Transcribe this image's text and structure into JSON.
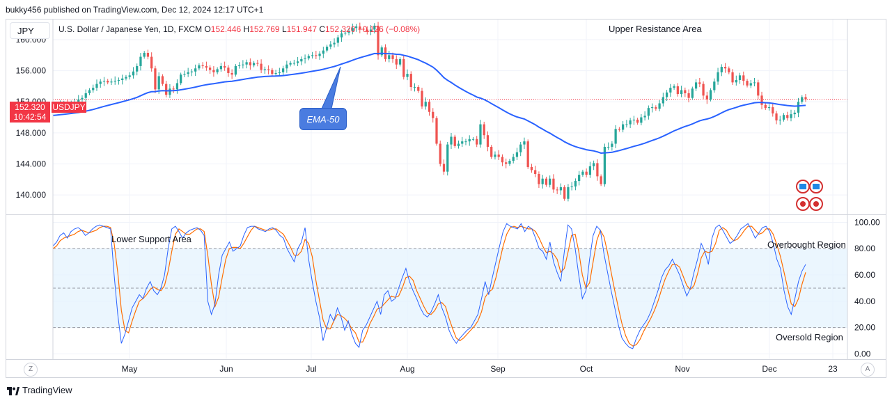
{
  "header": {
    "publish_text": "bukky456 published on TradingView.com, Dec 12, 2024 12:17 UTC+1"
  },
  "currency_button": "JPY",
  "legend": {
    "symbol_desc": "U.S. Dollar / Japanese Yen, 1D, FXCM",
    "o_label": "O",
    "o_value": "152.446",
    "h_label": "H",
    "h_value": "152.769",
    "l_label": "L",
    "l_value": "151.947",
    "c_label": "C",
    "c_value": "152.320",
    "change": "−0.126 (−0.08%)"
  },
  "price_tag": {
    "price": "152.320",
    "symbol": "USDJPY",
    "countdown": "10:42:54"
  },
  "annotations": {
    "upper_resistance": "Upper Resistance Area",
    "lower_support": "Lower Support Area",
    "ema": "EMA-50",
    "overbought": "Overbought Region",
    "oversold": "Oversold Region"
  },
  "footer": {
    "brand": "TradingView"
  },
  "buttons": {
    "tz": "Z",
    "auto": "A"
  },
  "colors": {
    "up": "#26a69a",
    "down": "#ef5350",
    "ema": "#2962ff",
    "stoch_k": "#2962ff",
    "stoch_d": "#ff6d00",
    "band": "#e3f2fd",
    "price_line": "#f23645"
  },
  "chart_data": [
    {
      "type": "candlestick",
      "title": "U.S. Dollar / Japanese Yen, 1D, FXCM",
      "price_axis": {
        "ticks": [
          "160.000",
          "156.000",
          "152.000",
          "148.000",
          "144.000",
          "140.000"
        ],
        "range": [
          137.5,
          162.6
        ]
      },
      "time_axis": {
        "ticks": [
          "May",
          "Jun",
          "Jul",
          "Aug",
          "Sep",
          "Oct",
          "Nov",
          "Dec",
          "23"
        ]
      },
      "last_close": 152.32,
      "date_range": [
        "2024-04-01",
        "2024-12-12"
      ],
      "closes": [
        151.2,
        151.4,
        151.6,
        151.8,
        151.6,
        151.9,
        152.0,
        152.3,
        152.5,
        153.1,
        153.5,
        153.8,
        154.3,
        154.6,
        154.7,
        154.5,
        154.6,
        154.7,
        154.8,
        155.0,
        155.2,
        155.4,
        155.9,
        156.6,
        157.8,
        158.3,
        157.8,
        156.3,
        153.6,
        155.3,
        154.3,
        152.9,
        153.7,
        153.6,
        154.4,
        155.5,
        155.6,
        155.8,
        155.9,
        156.3,
        156.7,
        156.6,
        156.4,
        156.1,
        155.8,
        156.2,
        156.6,
        156.4,
        155.7,
        155.5,
        156.6,
        156.7,
        156.8,
        157.1,
        156.7,
        157.0,
        156.9,
        156.1,
        156.2,
        156.1,
        155.6,
        155.7,
        155.8,
        156.3,
        156.8,
        157.0,
        157.0,
        157.2,
        157.5,
        157.6,
        157.9,
        158.0,
        157.9,
        158.2,
        158.6,
        159.1,
        159.4,
        159.6,
        160.3,
        160.8,
        160.9,
        161.1,
        161.5,
        161.7,
        161.4,
        161.3,
        161.0,
        161.3,
        161.8,
        158.0,
        159.0,
        157.5,
        158.0,
        157.5,
        156.8,
        157.5,
        155.2,
        155.6,
        153.9,
        153.9,
        153.4,
        151.4,
        152.0,
        150.7,
        149.9,
        146.6,
        144.0,
        143.0,
        146.5,
        147.5,
        146.3,
        146.6,
        146.9,
        146.9,
        147.2,
        147.2,
        146.5,
        149.1,
        147.7,
        146.2,
        144.9,
        145.2,
        144.9,
        144.2,
        144.0,
        144.4,
        144.9,
        145.5,
        146.5,
        146.9,
        143.6,
        143.2,
        142.7,
        141.4,
        142.1,
        141.3,
        142.1,
        140.7,
        140.6,
        141.0,
        139.5,
        141.0,
        141.1,
        141.8,
        142.6,
        143.0,
        142.6,
        143.7,
        144.1,
        142.4,
        141.4,
        146.2,
        146.2,
        146.6,
        148.5,
        148.4,
        149.1,
        149.1,
        149.6,
        149.7,
        149.3,
        150.0,
        150.2,
        151.2,
        151.3,
        151.1,
        151.8,
        152.6,
        153.2,
        153.8,
        154.0,
        153.0,
        153.5,
        153.1,
        152.5,
        153.7,
        154.5,
        154.3,
        152.8,
        152.3,
        153.5,
        154.6,
        155.8,
        156.5,
        156.3,
        155.8,
        154.5,
        154.8,
        155.4,
        154.7,
        154.1,
        154.4,
        154.5,
        152.8,
        151.6,
        151.2,
        151.3,
        150.5,
        149.6,
        149.7,
        150.3,
        149.9,
        150.4,
        150.6,
        152.0,
        152.6,
        152.32
      ],
      "ema_50": {
        "name": "EMA-50"
      }
    },
    {
      "type": "line",
      "title": "Stochastic",
      "y_ticks": [
        "100.00",
        "80.00",
        "60.00",
        "40.00",
        "20.00",
        "0.00"
      ],
      "ylim": [
        -4,
        105
      ],
      "bands": {
        "overbought": 80,
        "oversold": 20
      },
      "series": [
        {
          "key": "k",
          "values": [
            82,
            85,
            90,
            92,
            88,
            93,
            95,
            96,
            94,
            90,
            92,
            95,
            97,
            98,
            97,
            96,
            95,
            60,
            30,
            8,
            15,
            25,
            35,
            40,
            45,
            42,
            50,
            55,
            48,
            45,
            50,
            60,
            80,
            95,
            97,
            93,
            88,
            92,
            94,
            95,
            96,
            94,
            90,
            40,
            30,
            38,
            60,
            75,
            80,
            85,
            78,
            80,
            82,
            90,
            96,
            97,
            97,
            95,
            94,
            93,
            95,
            96,
            94,
            90,
            88,
            80,
            75,
            70,
            80,
            85,
            96,
            72,
            55,
            40,
            28,
            10,
            20,
            30,
            25,
            35,
            28,
            18,
            25,
            15,
            8,
            5,
            18,
            22,
            28,
            34,
            40,
            30,
            45,
            48,
            40,
            42,
            50,
            58,
            65,
            55,
            48,
            42,
            35,
            30,
            28,
            32,
            38,
            45,
            35,
            28,
            18,
            12,
            8,
            12,
            15,
            18,
            20,
            25,
            30,
            42,
            55,
            45,
            58,
            70,
            82,
            93,
            99,
            97,
            96,
            95,
            99,
            93,
            97,
            95,
            88,
            80,
            78,
            72,
            85,
            70,
            62,
            55,
            78,
            98,
            95,
            80,
            60,
            42,
            48,
            72,
            90,
            97,
            94,
            76,
            62,
            48,
            35,
            22,
            12,
            8,
            5,
            4,
            12,
            18,
            22,
            26,
            32,
            40,
            48,
            58,
            64,
            67,
            72,
            66,
            60,
            52,
            44,
            50,
            62,
            72,
            84,
            78,
            68,
            88,
            96,
            98,
            94,
            89,
            84,
            86,
            90,
            95,
            97,
            99,
            94,
            88,
            92,
            96,
            97,
            93,
            84,
            72,
            65,
            48,
            36,
            30,
            42,
            55,
            63,
            68
          ]
        },
        {
          "key": "d",
          "values": [
            80,
            82,
            86,
            88,
            89,
            90,
            91,
            93,
            94,
            93,
            92,
            93,
            94,
            96,
            97,
            97,
            96,
            84,
            62,
            33,
            18,
            16,
            25,
            33,
            40,
            42,
            45,
            49,
            51,
            49,
            48,
            52,
            63,
            78,
            91,
            95,
            93,
            91,
            91,
            93,
            95,
            95,
            93,
            75,
            53,
            36,
            43,
            58,
            72,
            80,
            81,
            81,
            80,
            84,
            89,
            94,
            97,
            96,
            95,
            94,
            94,
            95,
            95,
            93,
            91,
            86,
            81,
            75,
            75,
            78,
            87,
            84,
            74,
            56,
            41,
            26,
            19,
            19,
            25,
            30,
            29,
            27,
            24,
            19,
            16,
            9,
            9,
            15,
            23,
            28,
            34,
            35,
            38,
            41,
            44,
            43,
            44,
            50,
            58,
            59,
            56,
            48,
            42,
            36,
            31,
            30,
            33,
            38,
            39,
            36,
            27,
            19,
            12,
            10,
            12,
            15,
            18,
            21,
            25,
            32,
            43,
            47,
            49,
            58,
            70,
            82,
            91,
            96,
            97,
            96,
            97,
            96,
            95,
            95,
            93,
            88,
            82,
            77,
            78,
            76,
            72,
            62,
            65,
            77,
            90,
            91,
            78,
            60,
            50,
            54,
            70,
            86,
            94,
            89,
            77,
            62,
            48,
            35,
            23,
            14,
            8,
            6,
            7,
            11,
            17,
            22,
            27,
            33,
            40,
            49,
            57,
            63,
            68,
            68,
            66,
            59,
            52,
            49,
            52,
            61,
            73,
            78,
            77,
            78,
            84,
            94,
            96,
            94,
            89,
            86,
            87,
            90,
            94,
            97,
            97,
            94,
            91,
            92,
            95,
            95,
            91,
            83,
            74,
            62,
            50,
            38,
            36,
            42,
            53,
            62
          ]
        }
      ]
    }
  ]
}
